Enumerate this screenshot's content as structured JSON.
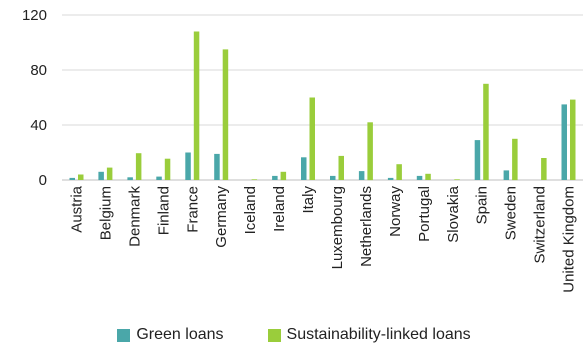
{
  "chart_data": {
    "type": "bar",
    "categories": [
      "Austria",
      "Belgium",
      "Denmark",
      "Finland",
      "France",
      "Germany",
      "Iceland",
      "Ireland",
      "Italy",
      "Luxembourg",
      "Netherlands",
      "Norway",
      "Portugal",
      "Slovakia",
      "Spain",
      "Sweden",
      "Switzerland",
      "United Kingdom"
    ],
    "series": [
      {
        "name": "Green loans",
        "color": "#4aa7a9",
        "values": [
          1.5,
          6,
          2,
          2.5,
          20,
          19,
          0,
          3,
          16.5,
          3,
          6.5,
          1.5,
          3,
          0,
          29,
          7,
          0,
          55
        ]
      },
      {
        "name": "Sustainability-linked loans",
        "color": "#9acd3b",
        "values": [
          4,
          9,
          19.5,
          15.5,
          108,
          95,
          0.5,
          6,
          60,
          17.5,
          42,
          11.5,
          4.5,
          0.5,
          70,
          30,
          16,
          58.5
        ]
      }
    ],
    "yticks": [
      "0",
      "40",
      "80",
      "120"
    ],
    "ylim": [
      0,
      120
    ],
    "xlabel": "",
    "ylabel": "",
    "grid": true,
    "legend_position": "bottom"
  }
}
